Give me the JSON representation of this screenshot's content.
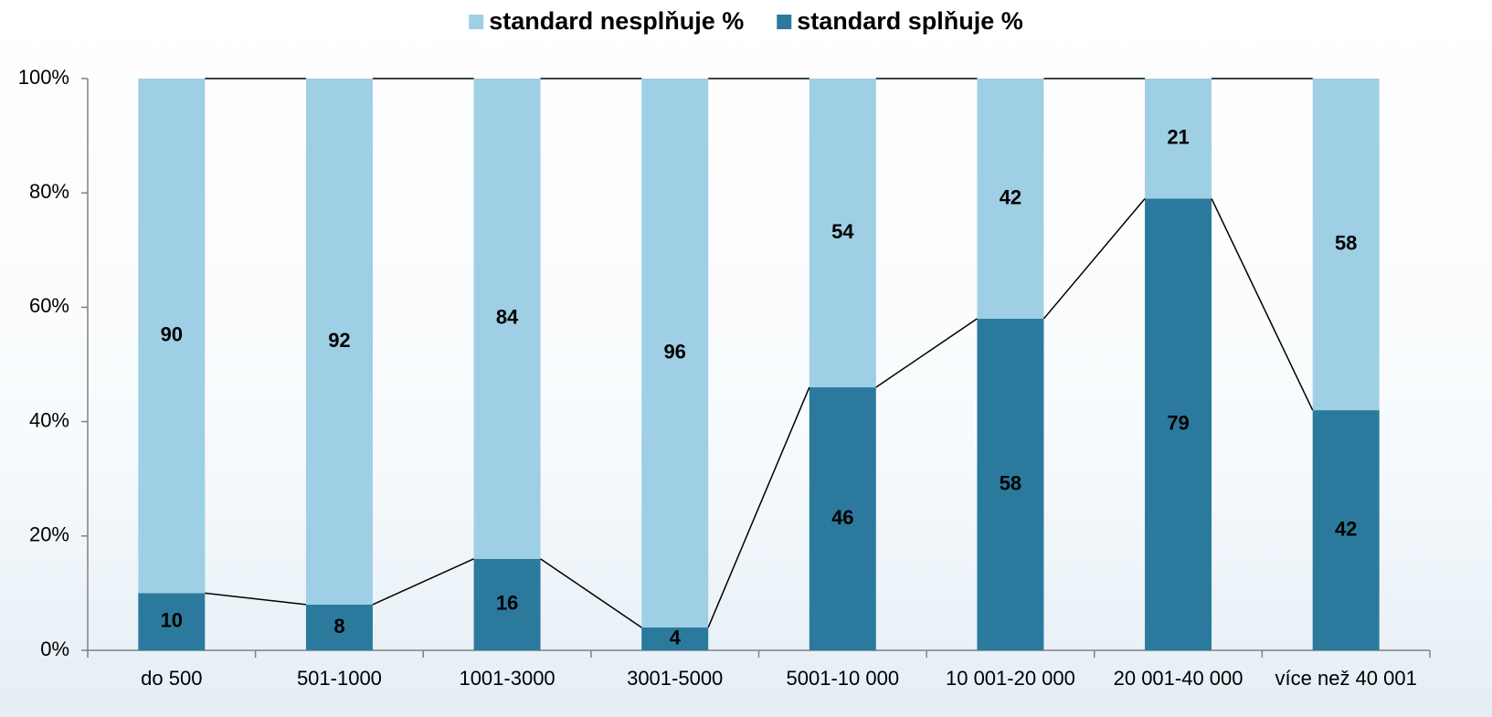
{
  "chart_data": {
    "type": "stacked_bar",
    "categories": [
      "do 500",
      "501-1000",
      "1001-3000",
      "3001-5000",
      "5001-10 000",
      "10 001-20 000",
      "20 001-40 000",
      "více než 40 001"
    ],
    "series": [
      {
        "name": "standard nesplňuje %",
        "color": "#9fcfe5",
        "values": [
          90,
          92,
          84,
          96,
          54,
          42,
          21,
          58
        ]
      },
      {
        "name": "standard splňuje %",
        "color": "#2b7a9e",
        "values": [
          10,
          8,
          16,
          4,
          46,
          58,
          79,
          42
        ]
      }
    ],
    "ylim": [
      0,
      100
    ],
    "yticks": [
      {
        "value": 0,
        "label": "0%"
      },
      {
        "value": 20,
        "label": "20%"
      },
      {
        "value": 40,
        "label": "40%"
      },
      {
        "value": 60,
        "label": "60%"
      },
      {
        "value": 80,
        "label": "80%"
      },
      {
        "value": 100,
        "label": "100%"
      }
    ],
    "legend": "top"
  }
}
